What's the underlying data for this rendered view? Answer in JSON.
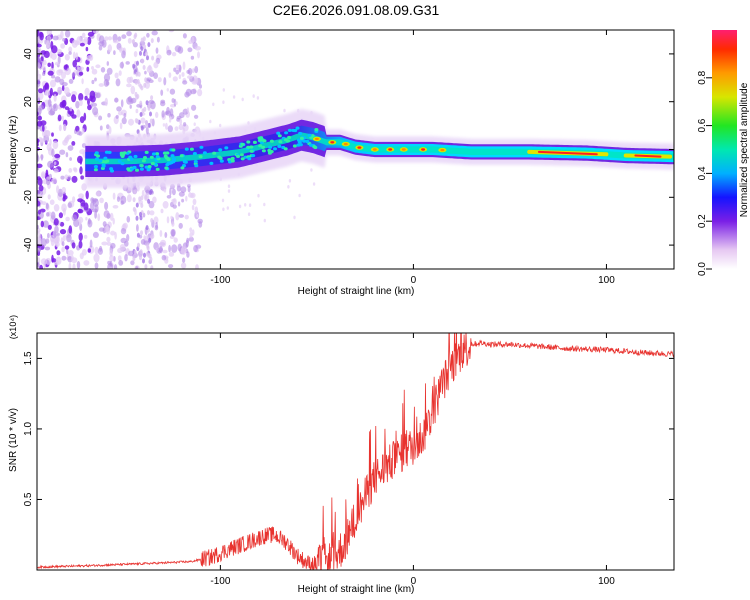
{
  "title": "C2E6.2026.091.08.09.G31",
  "chart_data": [
    {
      "type": "heatmap",
      "panel": "spectrogram",
      "xlabel": "Height of straight line (km)",
      "ylabel": "Frequency (Hz)",
      "xlim": [
        -195,
        135
      ],
      "ylim": [
        -50,
        50
      ],
      "xticks": [
        -100,
        0,
        100
      ],
      "yticks": [
        -40,
        -20,
        0,
        20,
        40
      ],
      "ridge": {
        "x": [
          -165,
          -150,
          -130,
          -110,
          -90,
          -75,
          -65,
          -58,
          -52,
          -45,
          -38,
          -30,
          -20,
          -10,
          0,
          10,
          30,
          60,
          90,
          110,
          135
        ],
        "freq": [
          -5,
          -5,
          -4.5,
          -3,
          -1,
          2,
          4,
          6,
          5,
          3,
          3,
          1,
          0,
          0,
          0,
          0,
          -1,
          -1,
          -1.5,
          -2.5,
          -3
        ]
      },
      "colorbar": {
        "label": "Normalized spectral amplitude",
        "range": [
          0,
          1
        ],
        "ticks": [
          0.0,
          0.2,
          0.4,
          0.6,
          0.8
        ]
      }
    },
    {
      "type": "line",
      "panel": "snr",
      "xlabel": "Height of straight line (km)",
      "ylabel": "SNR (10 * v/v)",
      "scale_label": "(x10⁴)",
      "xlim": [
        -195,
        135
      ],
      "ylim": [
        0,
        1.68
      ],
      "xticks": [
        -100,
        0,
        100
      ],
      "yticks": [
        0.5,
        1.0,
        1.5
      ],
      "color": "#e8332f",
      "series": [
        {
          "name": "SNR",
          "x": [
            -195,
            -170,
            -150,
            -130,
            -115,
            -105,
            -95,
            -85,
            -78,
            -72,
            -66,
            -60,
            -55,
            -50,
            -45,
            -40,
            -36,
            -32,
            -28,
            -24,
            -20,
            -15,
            -10,
            -5,
            0,
            5,
            10,
            15,
            20,
            25,
            30,
            35,
            40,
            50,
            60,
            80,
            100,
            120,
            135
          ],
          "y": [
            0.02,
            0.03,
            0.04,
            0.05,
            0.06,
            0.09,
            0.15,
            0.2,
            0.24,
            0.25,
            0.2,
            0.1,
            0.05,
            0.04,
            0.05,
            0.1,
            0.18,
            0.3,
            0.42,
            0.55,
            0.65,
            0.72,
            0.78,
            0.84,
            0.88,
            0.95,
            1.12,
            1.32,
            1.45,
            1.55,
            1.6,
            1.61,
            1.6,
            1.6,
            1.59,
            1.57,
            1.56,
            1.54,
            1.53
          ]
        }
      ]
    }
  ]
}
